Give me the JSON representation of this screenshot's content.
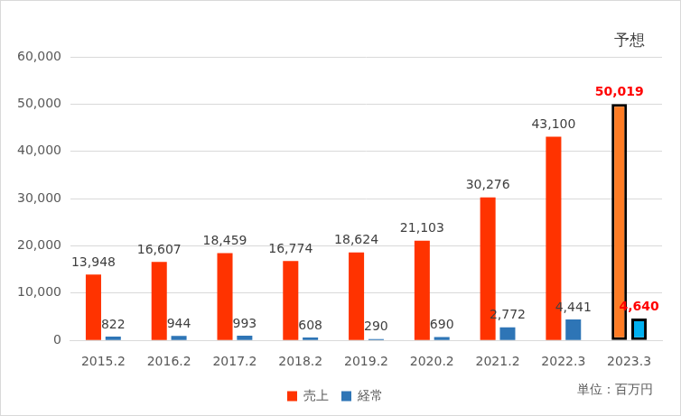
{
  "chart_data": {
    "type": "bar",
    "categories": [
      "2015.2",
      "2016.2",
      "2017.2",
      "2018.2",
      "2019.2",
      "2020.2",
      "2021.2",
      "2022.3",
      "2023.3"
    ],
    "series": [
      {
        "name": "売上",
        "colors": [
          "#ff3300",
          "#ff3300",
          "#ff3300",
          "#ff3300",
          "#ff3300",
          "#ff3300",
          "#ff3300",
          "#ff3300",
          "#ff7c24"
        ],
        "values": [
          13948,
          16607,
          18459,
          16774,
          18624,
          21103,
          30276,
          43100,
          50019
        ],
        "value_labels": [
          "13,948",
          "16,607",
          "18,459",
          "16,774",
          "18,624",
          "21,103",
          "30,276",
          "43,100",
          "50,019"
        ]
      },
      {
        "name": "経常",
        "colors": [
          "#2e75b6",
          "#2e75b6",
          "#2e75b6",
          "#2e75b6",
          "#2e75b6",
          "#2e75b6",
          "#2e75b6",
          "#2e75b6",
          "#00b0f0"
        ],
        "values": [
          822,
          944,
          993,
          608,
          290,
          690,
          2772,
          4441,
          4640
        ],
        "value_labels": [
          "822",
          "944",
          "993",
          "608",
          "290",
          "690",
          "2,772",
          "4,441",
          "4,640"
        ]
      }
    ],
    "ylim": [
      0,
      60000
    ],
    "yticks": [
      0,
      {
        "value": 10000,
        "label": "10,000"
      },
      {
        "value": 20000,
        "label": "20,000"
      },
      {
        "value": 30000,
        "label": "30,000"
      },
      {
        "value": 40000,
        "label": "40,000"
      },
      {
        "value": 50000,
        "label": "50,000"
      },
      {
        "value": 60000,
        "label": "60,000"
      }
    ],
    "grid": true,
    "legend": "bottom",
    "data_labels": true,
    "annotations": [
      "予想",
      "単位：百万円"
    ]
  }
}
